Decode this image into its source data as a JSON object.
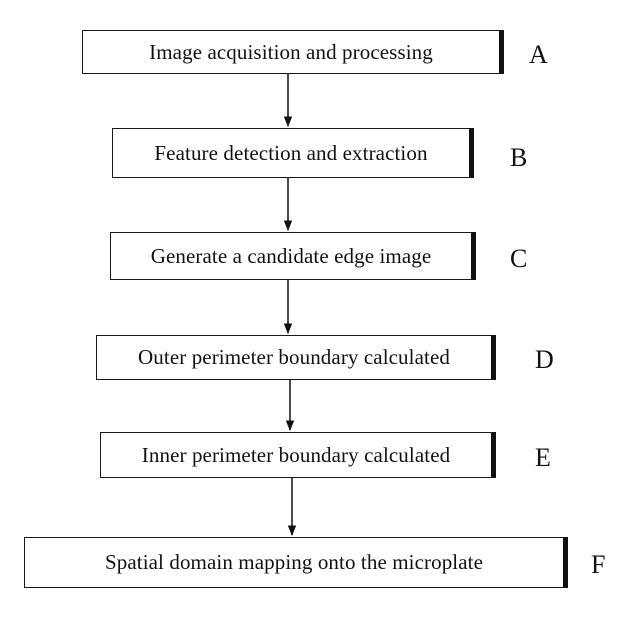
{
  "steps": [
    {
      "label": "Image acquisition and processing",
      "letter": "A"
    },
    {
      "label": "Feature detection and extraction",
      "letter": "B"
    },
    {
      "label": "Generate a candidate edge image",
      "letter": "C"
    },
    {
      "label": "Outer perimeter boundary calculated",
      "letter": "D"
    },
    {
      "label": "Inner perimeter boundary calculated",
      "letter": "E"
    },
    {
      "label": "Spatial domain mapping onto the microplate",
      "letter": "F"
    }
  ]
}
